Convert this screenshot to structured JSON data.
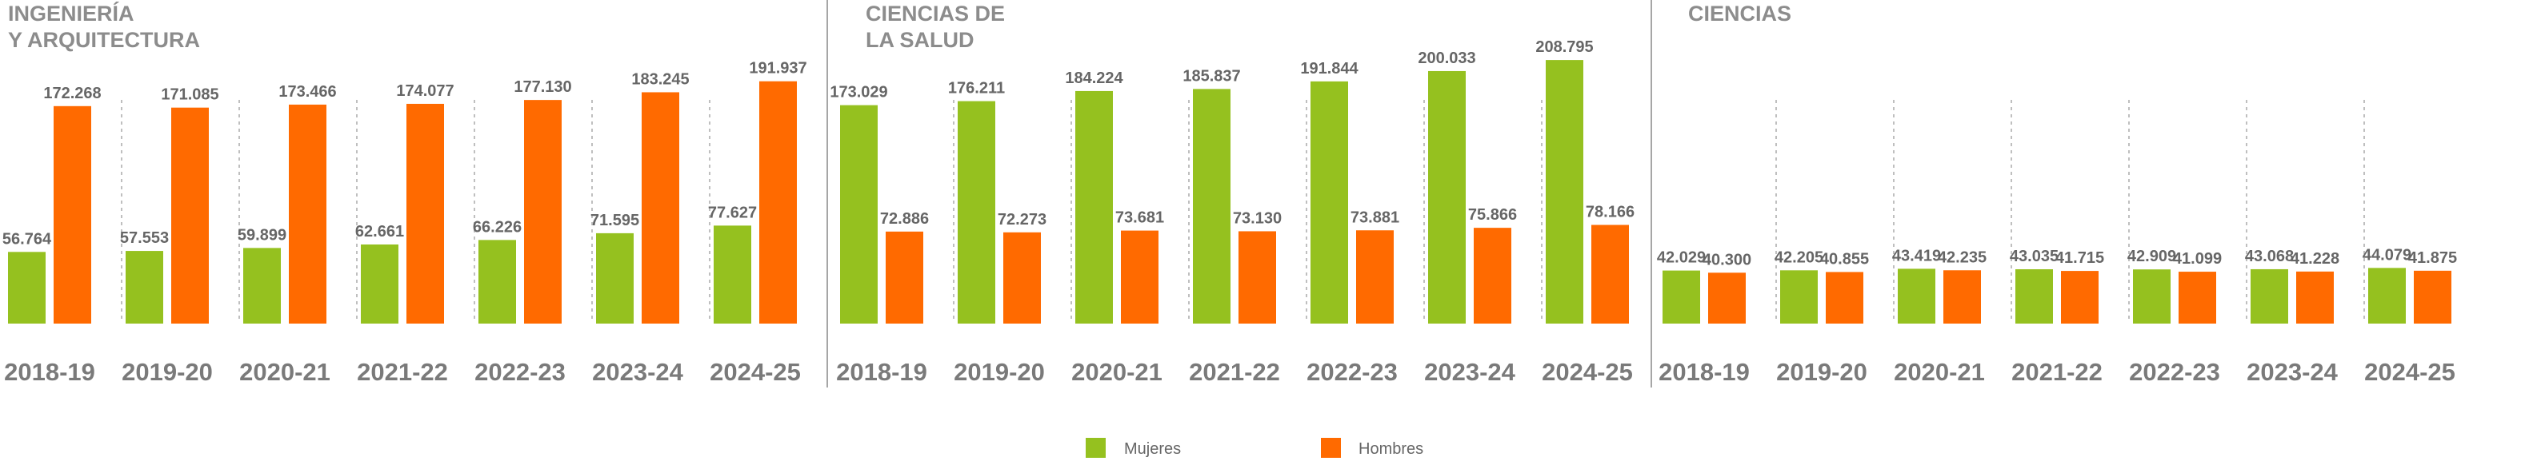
{
  "legend": {
    "mujeres": "Mujeres",
    "hombres": "Hombres"
  },
  "colors": {
    "mujeres": "#95c11f",
    "hombres": "#ff6a00",
    "grid": "#bfbfbf",
    "separator": "#a6a6a6",
    "title": "#8c8c8c",
    "value_label": "#666666",
    "tick_label": "#7a7a7a"
  },
  "chart_data": [
    {
      "type": "bar",
      "title_lines": [
        "INGENIERÍA",
        "Y ARQUITECTURA"
      ],
      "categories": [
        "2018-19",
        "2019-20",
        "2020-21",
        "2021-22",
        "2022-23",
        "2023-24",
        "2024-25"
      ],
      "series": [
        {
          "name": "Mujeres",
          "values": [
            56764,
            57553,
            59899,
            62661,
            66226,
            71595,
            77627
          ],
          "labels": [
            "56.764",
            "57.553",
            "59.899",
            "62.661",
            "66.226",
            "71.595",
            "77.627"
          ]
        },
        {
          "name": "Hombres",
          "values": [
            172268,
            171085,
            173466,
            174077,
            177130,
            183245,
            191937
          ],
          "labels": [
            "172.268",
            "171.085",
            "173.466",
            "174.077",
            "177.130",
            "183.245",
            "191.937"
          ]
        }
      ],
      "ylim": [
        0,
        240000
      ],
      "legend": "bottom-center",
      "grid": false
    },
    {
      "type": "bar",
      "title_lines": [
        "CIENCIAS DE",
        "LA SALUD"
      ],
      "categories": [
        "2018-19",
        "2019-20",
        "2020-21",
        "2021-22",
        "2022-23",
        "2023-24",
        "2024-25"
      ],
      "series": [
        {
          "name": "Mujeres",
          "values": [
            173029,
            176211,
            184224,
            185837,
            191844,
            200033,
            208795
          ],
          "labels": [
            "173.029",
            "176.211",
            "184.224",
            "185.837",
            "191.844",
            "200.033",
            "208.795"
          ]
        },
        {
          "name": "Hombres",
          "values": [
            72886,
            72273,
            73681,
            73130,
            73881,
            75866,
            78166
          ],
          "labels": [
            "72.886",
            "72.273",
            "73.681",
            "73.130",
            "73.881",
            "75.866",
            "78.166"
          ]
        }
      ],
      "ylim": [
        0,
        240000
      ],
      "legend": "bottom-center",
      "grid": false
    },
    {
      "type": "bar",
      "title_lines": [
        "CIENCIAS"
      ],
      "categories": [
        "2018-19",
        "2019-20",
        "2020-21",
        "2021-22",
        "2022-23",
        "2023-24",
        "2024-25"
      ],
      "series": [
        {
          "name": "Mujeres",
          "values": [
            42029,
            42205,
            43419,
            43035,
            42909,
            43068,
            44079
          ],
          "labels": [
            "42.029",
            "42.205",
            "43.419",
            "43.035",
            "42.909",
            "43.068",
            "44.079"
          ]
        },
        {
          "name": "Hombres",
          "values": [
            40300,
            40855,
            42235,
            41715,
            41099,
            41228,
            41875
          ],
          "labels": [
            "40.300",
            "40.855",
            "42.235",
            "41.715",
            "41.099",
            "41.228",
            "41.875"
          ]
        }
      ],
      "ylim": [
        0,
        240000
      ],
      "legend": "bottom-center",
      "grid": false
    }
  ]
}
